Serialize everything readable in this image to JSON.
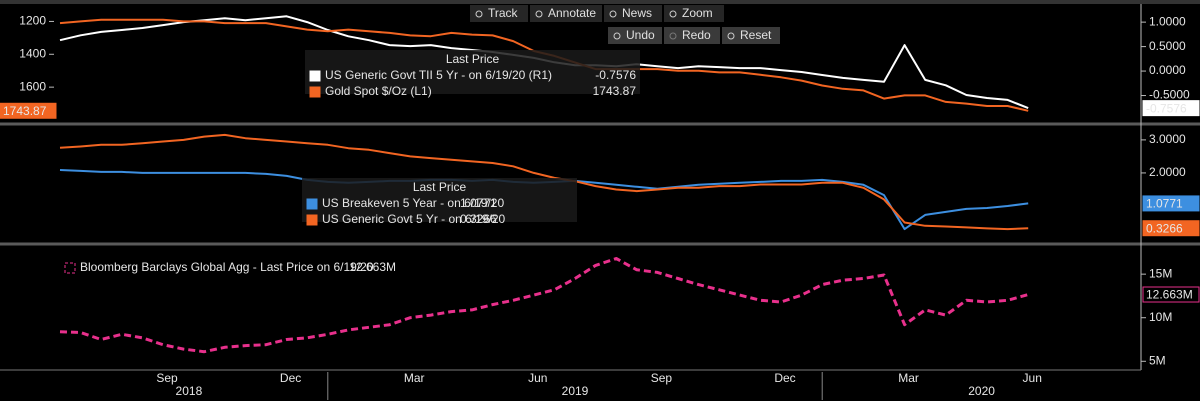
{
  "toolbar": [
    "Track",
    "Annotate",
    "News",
    "Zoom",
    "Undo",
    "Redo",
    "Reset"
  ],
  "chart_data": [
    {
      "type": "line",
      "legend_title": "Last Price",
      "y_axis_side": "left",
      "ylim": [
        1800,
        1100
      ],
      "yticks": [
        1200,
        1400,
        1600
      ],
      "y2lim": [
        -1.0,
        1.35
      ],
      "y2ticks": [
        {
          "value": 1,
          "label": "1.0000"
        },
        {
          "value": 0.5,
          "label": "0.5000"
        },
        {
          "value": 0,
          "label": "0.0000"
        },
        {
          "value": -0.5,
          "label": "-0.5000"
        }
      ],
      "series": [
        {
          "name": "US Generic Govt TII 5 Yr -  on 6/19/20  (R1)",
          "color": "#ffffff",
          "axis": "y2",
          "values": [
            0.63,
            0.73,
            0.8,
            0.84,
            0.88,
            0.94,
            1.0,
            1.04,
            1.08,
            1.04,
            1.08,
            1.12,
            1.0,
            0.84,
            0.71,
            0.63,
            0.53,
            0.51,
            0.53,
            0.47,
            0.43,
            0.39,
            0.33,
            0.27,
            0.18,
            0.12,
            0.12,
            0.1,
            0.14,
            0.1,
            0.06,
            0.1,
            0.08,
            0.06,
            0.06,
            0.02,
            -0.02,
            -0.08,
            -0.14,
            -0.18,
            -0.22,
            0.53,
            -0.18,
            -0.29,
            -0.49,
            -0.55,
            -0.59,
            -0.7576
          ]
        },
        {
          "name": "Gold Spot $/Oz  (L1)",
          "color": "#f26522",
          "values": [
            1210,
            1200,
            1190,
            1190,
            1190,
            1190,
            1200,
            1200,
            1210,
            1210,
            1210,
            1230,
            1250,
            1260,
            1250,
            1260,
            1270,
            1285,
            1290,
            1270,
            1280,
            1285,
            1320,
            1380,
            1410,
            1450,
            1490,
            1490,
            1490,
            1490,
            1500,
            1500,
            1510,
            1510,
            1525,
            1540,
            1560,
            1590,
            1610,
            1620,
            1670,
            1650,
            1650,
            1690,
            1700,
            1715,
            1715,
            1743.87
          ]
        }
      ]
    },
    {
      "type": "line",
      "legend_title": "Last Price",
      "y_axis_side": "right",
      "ylim": [
        -0.03,
        3.36
      ],
      "yticks": [
        {
          "value": 3,
          "label": "3.0000"
        },
        {
          "value": 2,
          "label": "2.0000"
        }
      ],
      "series": [
        {
          "name": "US Breakeven 5 Year -  on 6/19/20",
          "color": "#3d8fe0",
          "values": [
            2.09,
            2.06,
            2.03,
            2.03,
            2.0,
            2.0,
            2.0,
            2.0,
            2.0,
            2.0,
            1.97,
            1.91,
            1.79,
            1.73,
            1.7,
            1.73,
            1.76,
            1.76,
            1.79,
            1.79,
            1.76,
            1.79,
            1.73,
            1.7,
            1.73,
            1.76,
            1.7,
            1.64,
            1.58,
            1.52,
            1.58,
            1.64,
            1.67,
            1.7,
            1.73,
            1.76,
            1.76,
            1.79,
            1.73,
            1.64,
            1.33,
            0.3,
            0.73,
            0.82,
            0.91,
            0.94,
            1.0,
            1.0771
          ]
        },
        {
          "name": "US Generic Govt 5 Yr -  on 6/19/20",
          "color": "#f26522",
          "values": [
            2.76,
            2.8,
            2.85,
            2.85,
            2.9,
            2.95,
            3.0,
            3.1,
            3.15,
            3.05,
            3.0,
            2.95,
            2.9,
            2.85,
            2.75,
            2.7,
            2.6,
            2.5,
            2.45,
            2.4,
            2.35,
            2.3,
            2.2,
            2.0,
            1.85,
            1.75,
            1.6,
            1.5,
            1.45,
            1.5,
            1.55,
            1.55,
            1.6,
            1.6,
            1.65,
            1.65,
            1.65,
            1.7,
            1.7,
            1.55,
            1.2,
            0.5,
            0.4,
            0.38,
            0.35,
            0.32,
            0.3,
            0.3266
          ]
        }
      ]
    },
    {
      "type": "line",
      "y_axis_side": "right",
      "dashed": true,
      "ylim": [
        4,
        18
      ],
      "yticks": [
        {
          "value": 15,
          "label": "15M"
        },
        {
          "value": 10,
          "label": "10M"
        },
        {
          "value": 5,
          "label": "5M"
        }
      ],
      "categories": [
        null,
        null,
        null,
        null,
        null,
        "Sep",
        null,
        null,
        null,
        null,
        null,
        "Dec",
        null,
        null,
        null,
        null,
        null,
        "Mar",
        null,
        null,
        null,
        null,
        null,
        "Jun",
        null,
        null,
        null,
        null,
        null,
        "Sep",
        null,
        null,
        null,
        null,
        null,
        "Dec",
        null,
        null,
        null,
        null,
        null,
        "Mar",
        null,
        null,
        null,
        null,
        null,
        "Jun"
      ],
      "years": [
        "2018",
        "2019",
        "2020"
      ],
      "series": [
        {
          "name": "Bloomberg Barclays Global Agg - Last Price on 6/19/20",
          "color": "#e8308c",
          "values": [
            8.4,
            8.3,
            7.5,
            8.1,
            7.7,
            6.9,
            6.4,
            6.1,
            6.6,
            6.8,
            6.9,
            7.5,
            7.7,
            8.1,
            8.6,
            8.9,
            9.2,
            10,
            10.3,
            10.7,
            10.9,
            11.5,
            12.0,
            12.6,
            13.2,
            14.5,
            16.0,
            16.8,
            15.5,
            15.2,
            14.5,
            13.8,
            13.2,
            12.6,
            12.0,
            11.8,
            12.6,
            13.8,
            14.3,
            14.5,
            14.9,
            9.2,
            10.9,
            10.3,
            12.0,
            11.8,
            12.0,
            12.663
          ],
          "value_labels": [
            null,
            null,
            null,
            null,
            null,
            null,
            null,
            null,
            null,
            null,
            null,
            null,
            null,
            null,
            null,
            null,
            null,
            null,
            null,
            null,
            null,
            null,
            null,
            null,
            null,
            null,
            null,
            null,
            null,
            null,
            null,
            null,
            null,
            null,
            null,
            null,
            null,
            null,
            null,
            null,
            null,
            null,
            null,
            null,
            null,
            null,
            null,
            "12.663M"
          ]
        }
      ]
    }
  ]
}
